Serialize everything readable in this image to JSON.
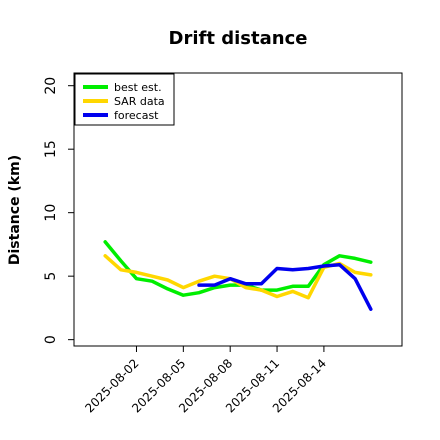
{
  "chart_data": {
    "type": "line",
    "title": "Drift distance",
    "xlabel": "",
    "ylabel": "Distance (km)",
    "ylim": [
      -0.5,
      21
    ],
    "yticks": [
      0,
      5,
      10,
      15,
      20
    ],
    "xlim": [
      "2025-07-29",
      "2025-08-19"
    ],
    "xticks": [
      "2025-08-02",
      "2025-08-05",
      "2025-08-08",
      "2025-08-11",
      "2025-08-14"
    ],
    "grid": false,
    "legend_position": "top-left",
    "series": [
      {
        "name": "best est.",
        "color": "#00ee00",
        "points": [
          [
            "2025-07-31",
            7.7
          ],
          [
            "2025-08-01",
            6.2
          ],
          [
            "2025-08-02",
            4.8
          ],
          [
            "2025-08-03",
            4.6
          ],
          [
            "2025-08-04",
            4.0
          ],
          [
            "2025-08-05",
            3.5
          ],
          [
            "2025-08-06",
            3.7
          ],
          [
            "2025-08-07",
            4.1
          ],
          [
            "2025-08-08",
            4.3
          ],
          [
            "2025-08-09",
            4.3
          ],
          [
            "2025-08-10",
            3.9
          ],
          [
            "2025-08-11",
            3.9
          ],
          [
            "2025-08-12",
            4.2
          ],
          [
            "2025-08-13",
            4.2
          ],
          [
            "2025-08-14",
            5.9
          ],
          [
            "2025-08-15",
            6.6
          ],
          [
            "2025-08-16",
            6.4
          ],
          [
            "2025-08-17",
            6.1
          ]
        ]
      },
      {
        "name": "SAR data",
        "color": "#ffd700",
        "points": [
          [
            "2025-07-31",
            6.6
          ],
          [
            "2025-08-01",
            5.5
          ],
          [
            "2025-08-02",
            5.3
          ],
          [
            "2025-08-03",
            5.0
          ],
          [
            "2025-08-04",
            4.7
          ],
          [
            "2025-08-05",
            4.1
          ],
          [
            "2025-08-06",
            4.6
          ],
          [
            "2025-08-07",
            5.0
          ],
          [
            "2025-08-08",
            4.8
          ],
          [
            "2025-08-09",
            4.1
          ],
          [
            "2025-08-10",
            3.9
          ],
          [
            "2025-08-11",
            3.4
          ],
          [
            "2025-08-12",
            3.8
          ],
          [
            "2025-08-13",
            3.3
          ],
          [
            "2025-08-14",
            5.7
          ],
          [
            "2025-08-15",
            6.0
          ],
          [
            "2025-08-16",
            5.3
          ],
          [
            "2025-08-17",
            5.1
          ]
        ]
      },
      {
        "name": "forecast",
        "color": "#0000ee",
        "points": [
          [
            "2025-08-06",
            4.3
          ],
          [
            "2025-08-07",
            4.3
          ],
          [
            "2025-08-08",
            4.8
          ],
          [
            "2025-08-09",
            4.4
          ],
          [
            "2025-08-10",
            4.4
          ],
          [
            "2025-08-11",
            5.6
          ],
          [
            "2025-08-12",
            5.5
          ],
          [
            "2025-08-13",
            5.6
          ],
          [
            "2025-08-14",
            5.8
          ],
          [
            "2025-08-15",
            5.9
          ],
          [
            "2025-08-16",
            4.8
          ],
          [
            "2025-08-17",
            2.4
          ]
        ]
      }
    ]
  }
}
